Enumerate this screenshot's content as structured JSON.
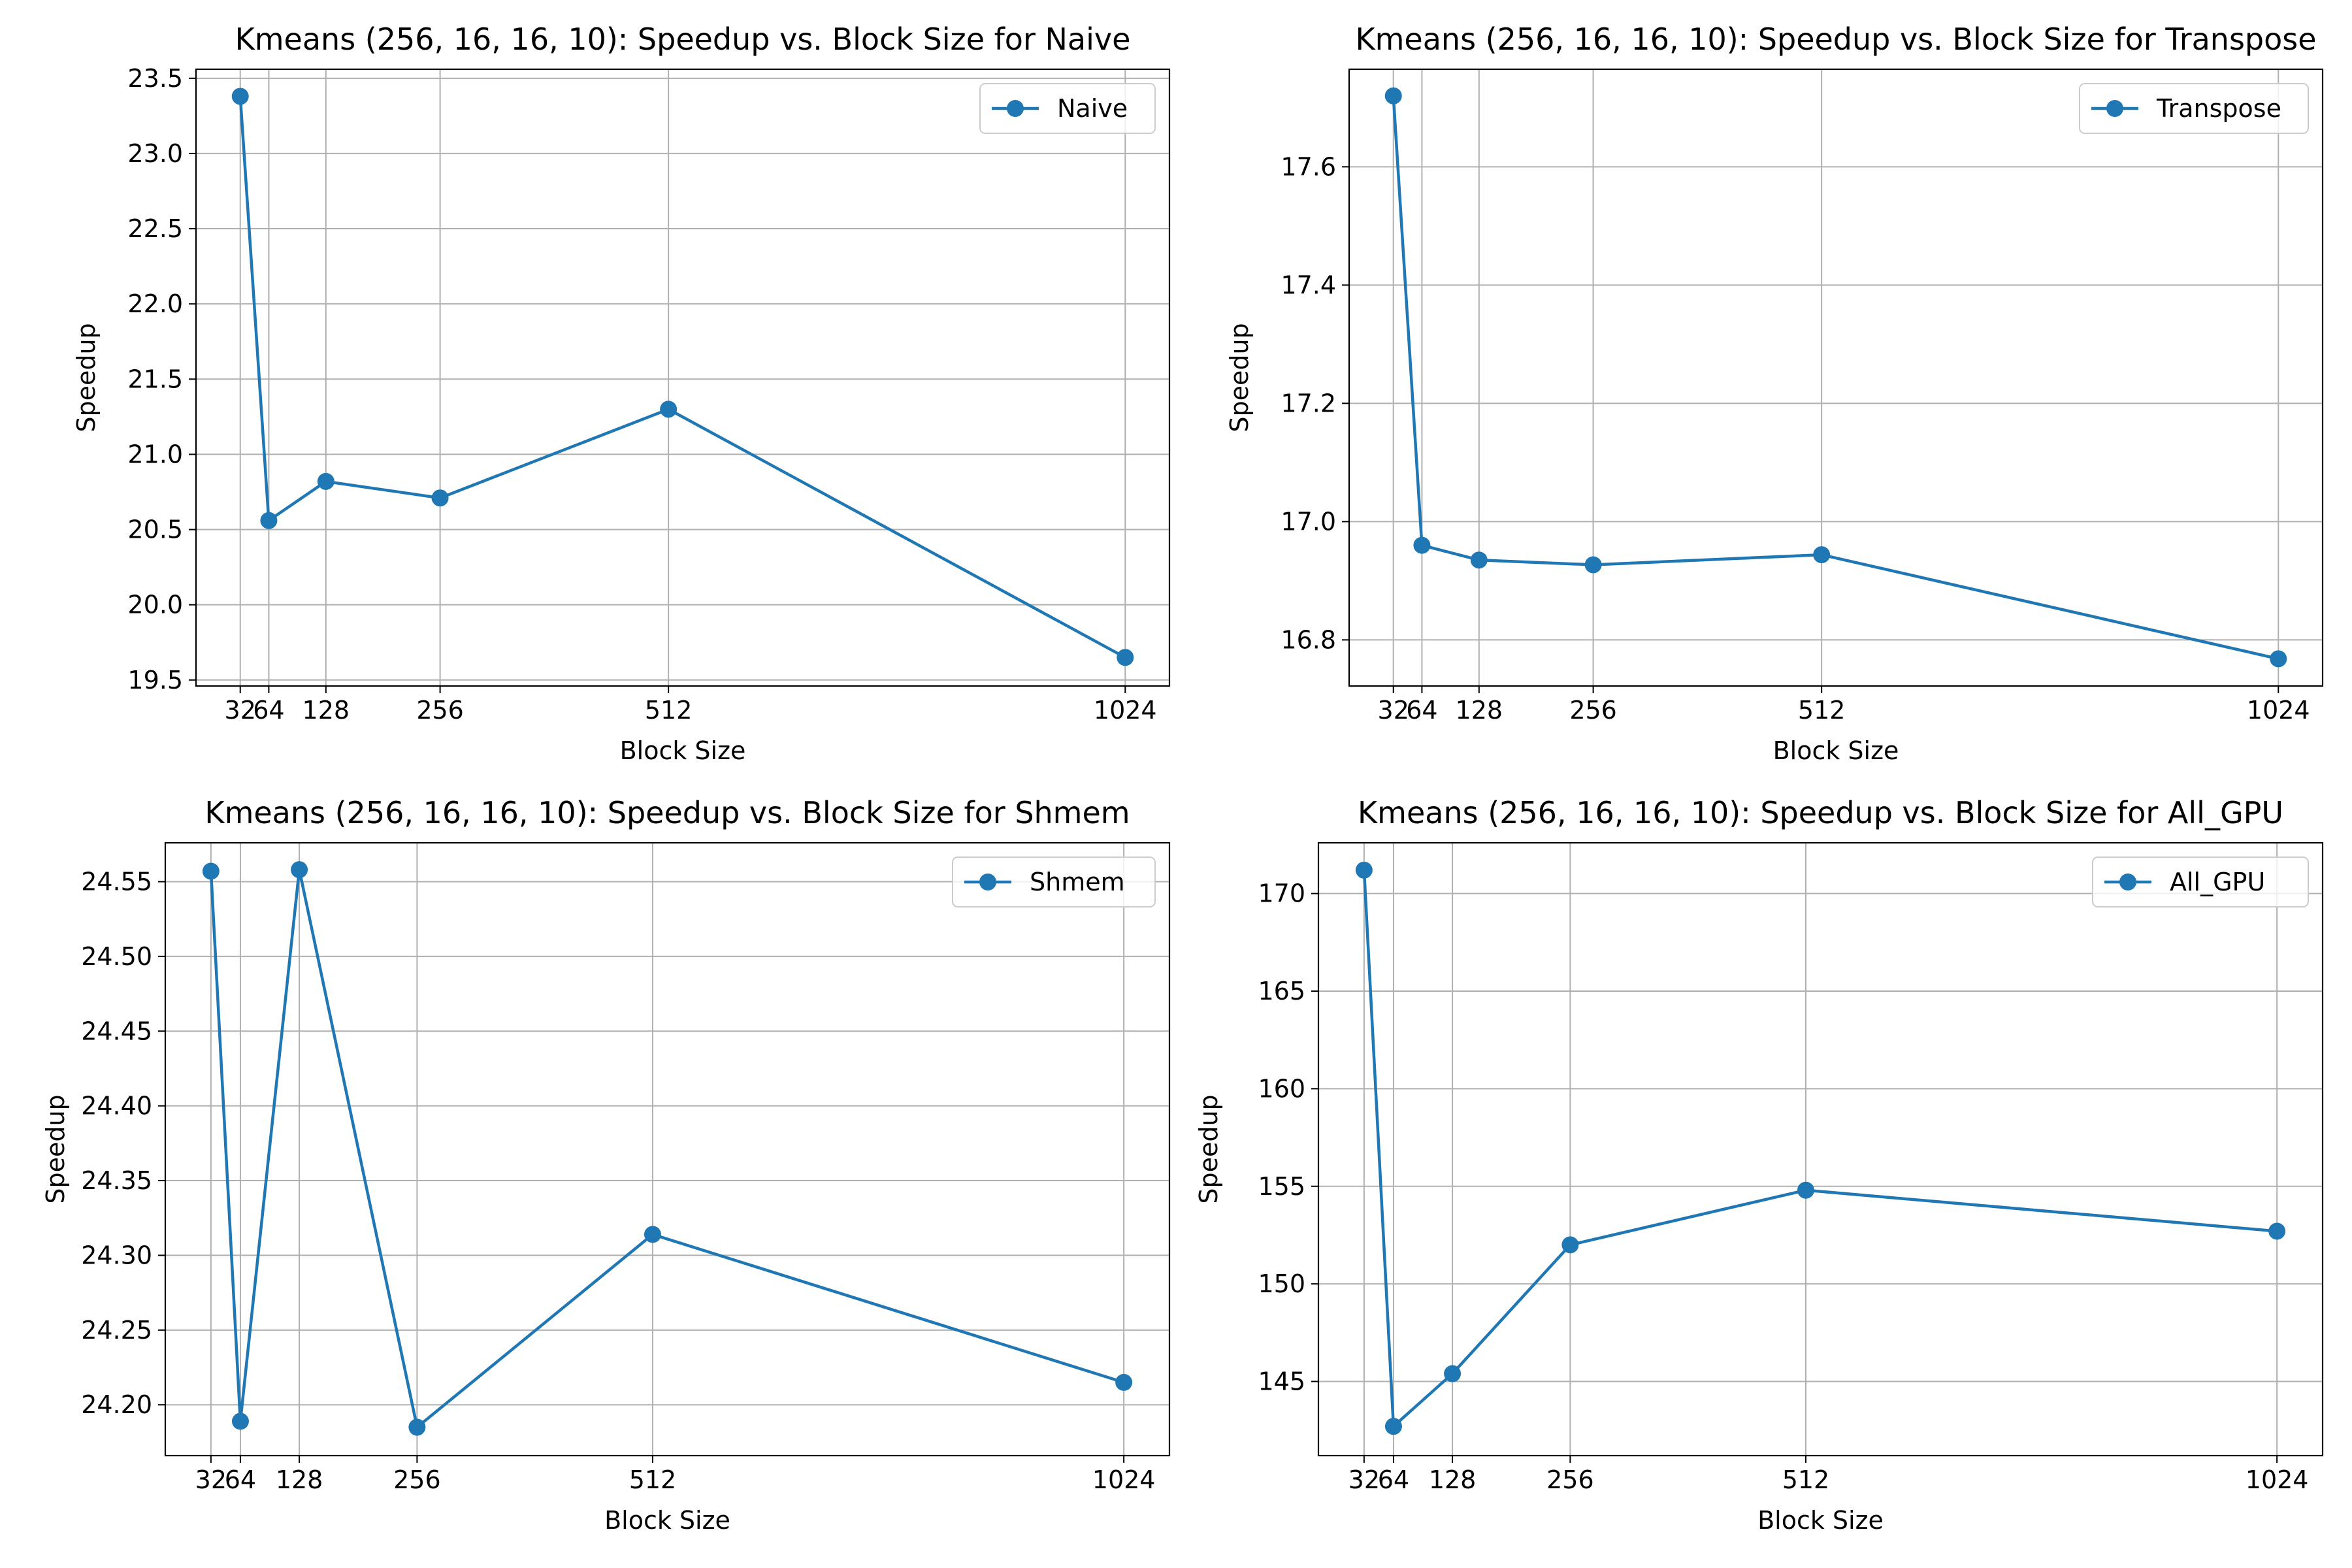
{
  "chart_data": [
    {
      "type": "line",
      "title": "Kmeans (256, 16, 16, 10): Speedup vs. Block Size for Naive",
      "xlabel": "Block Size",
      "ylabel": "Speedup",
      "grid": true,
      "legend_position": "top-right",
      "x": [
        32,
        64,
        128,
        256,
        512,
        1024
      ],
      "xticks": [
        32,
        64,
        128,
        256,
        512,
        1024
      ],
      "xlim": [
        -17.6,
        1073.6
      ],
      "ylim": [
        19.46,
        23.56
      ],
      "yticks": [
        19.5,
        20.0,
        20.5,
        21.0,
        21.5,
        22.0,
        22.5,
        23.0,
        23.5
      ],
      "ytick_labels": [
        "19.5",
        "20.0",
        "20.5",
        "21.0",
        "21.5",
        "22.0",
        "22.5",
        "23.0",
        "23.5"
      ],
      "series": [
        {
          "name": "Naive",
          "color": "#1f77b4",
          "marker": "circle",
          "values": [
            23.38,
            20.56,
            20.82,
            20.71,
            21.3,
            19.65
          ]
        }
      ]
    },
    {
      "type": "line",
      "title": "Kmeans (256, 16, 16, 10): Speedup vs. Block Size for Transpose",
      "xlabel": "Block Size",
      "ylabel": "Speedup",
      "grid": true,
      "legend_position": "top-right",
      "x": [
        32,
        64,
        128,
        256,
        512,
        1024
      ],
      "xticks": [
        32,
        64,
        128,
        256,
        512,
        1024
      ],
      "xlim": [
        -17.6,
        1073.6
      ],
      "ylim": [
        16.722,
        17.765
      ],
      "yticks": [
        16.8,
        17.0,
        17.2,
        17.4,
        17.6
      ],
      "ytick_labels": [
        "16.8",
        "17.0",
        "17.2",
        "17.4",
        "17.6"
      ],
      "series": [
        {
          "name": "Transpose",
          "color": "#1f77b4",
          "marker": "circle",
          "values": [
            17.72,
            16.96,
            16.935,
            16.927,
            16.944,
            16.768
          ]
        }
      ]
    },
    {
      "type": "line",
      "title": "Kmeans (256, 16, 16, 10): Speedup vs. Block Size for Shmem",
      "xlabel": "Block Size",
      "ylabel": "Speedup",
      "grid": true,
      "legend_position": "top-right",
      "x": [
        32,
        64,
        128,
        256,
        512,
        1024
      ],
      "xticks": [
        32,
        64,
        128,
        256,
        512,
        1024
      ],
      "xlim": [
        -17.6,
        1073.6
      ],
      "ylim": [
        24.166,
        24.576
      ],
      "yticks": [
        24.2,
        24.25,
        24.3,
        24.35,
        24.4,
        24.45,
        24.5,
        24.55
      ],
      "ytick_labels": [
        "24.20",
        "24.25",
        "24.30",
        "24.35",
        "24.40",
        "24.45",
        "24.50",
        "24.55"
      ],
      "series": [
        {
          "name": "Shmem",
          "color": "#1f77b4",
          "marker": "circle",
          "values": [
            24.557,
            24.189,
            24.558,
            24.185,
            24.314,
            24.215
          ]
        }
      ]
    },
    {
      "type": "line",
      "title": "Kmeans (256, 16, 16, 10): Speedup vs. Block Size for All_GPU",
      "xlabel": "Block Size",
      "ylabel": "Speedup",
      "grid": true,
      "legend_position": "top-right",
      "x": [
        32,
        64,
        128,
        256,
        512,
        1024
      ],
      "xticks": [
        32,
        64,
        128,
        256,
        512,
        1024
      ],
      "xlim": [
        -17.6,
        1073.6
      ],
      "ylim": [
        141.2,
        172.6
      ],
      "yticks": [
        145,
        150,
        155,
        160,
        165,
        170
      ],
      "ytick_labels": [
        "145",
        "150",
        "155",
        "160",
        "165",
        "170"
      ],
      "series": [
        {
          "name": "All_GPU",
          "color": "#1f77b4",
          "marker": "circle",
          "values": [
            171.2,
            142.7,
            145.4,
            152.0,
            154.8,
            152.7
          ]
        }
      ]
    }
  ]
}
